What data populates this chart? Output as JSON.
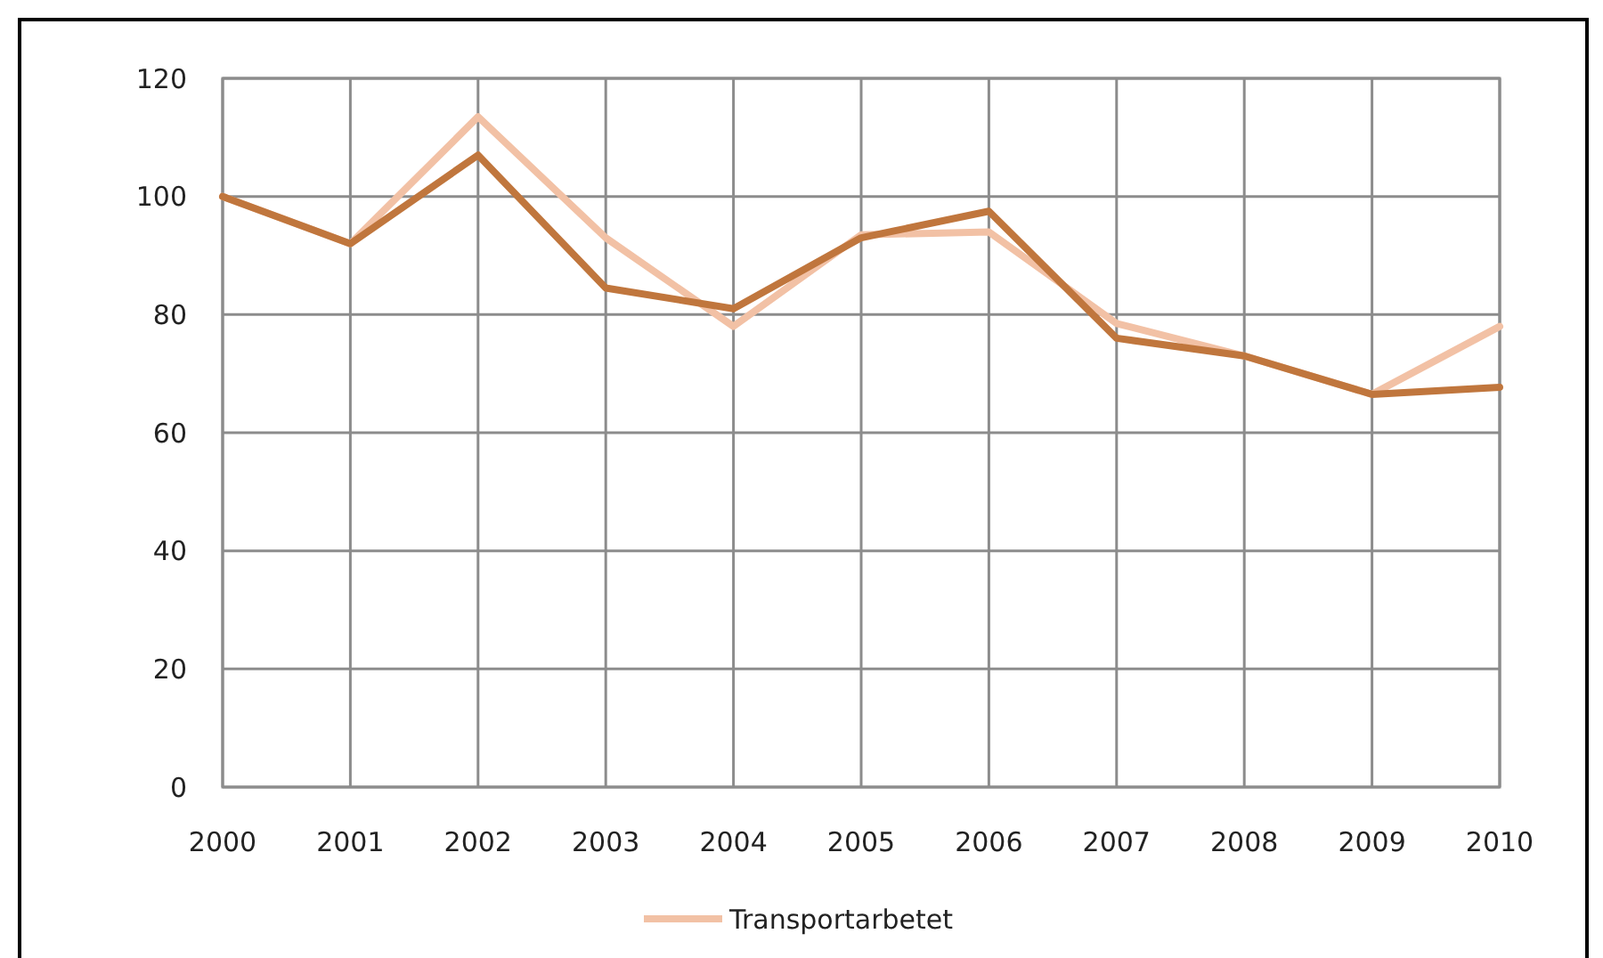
{
  "chart_data": {
    "type": "line",
    "x": [
      2000,
      2001,
      2002,
      2003,
      2004,
      2005,
      2006,
      2007,
      2008,
      2009,
      2010
    ],
    "xlim": [
      2000,
      2010
    ],
    "xticks": [
      2000,
      2001,
      2002,
      2003,
      2004,
      2005,
      2006,
      2007,
      2008,
      2009,
      2010
    ],
    "ylim": [
      0,
      120
    ],
    "yticks": [
      0,
      20,
      40,
      60,
      80,
      100,
      120
    ],
    "grid": true,
    "legend": "bottom",
    "marker": "none",
    "line_style": "solid",
    "series": [
      {
        "name": "Transportarbetet",
        "color": "#f2c1a5",
        "values": [
          100,
          92,
          113.5,
          93,
          78,
          93.5,
          94,
          78.5,
          73,
          66.5,
          78
        ]
      },
      {
        "color": "#c0763d",
        "values": [
          100,
          92,
          107,
          84.5,
          81,
          93,
          97.5,
          76,
          73,
          66.5,
          67.7
        ]
      }
    ]
  }
}
